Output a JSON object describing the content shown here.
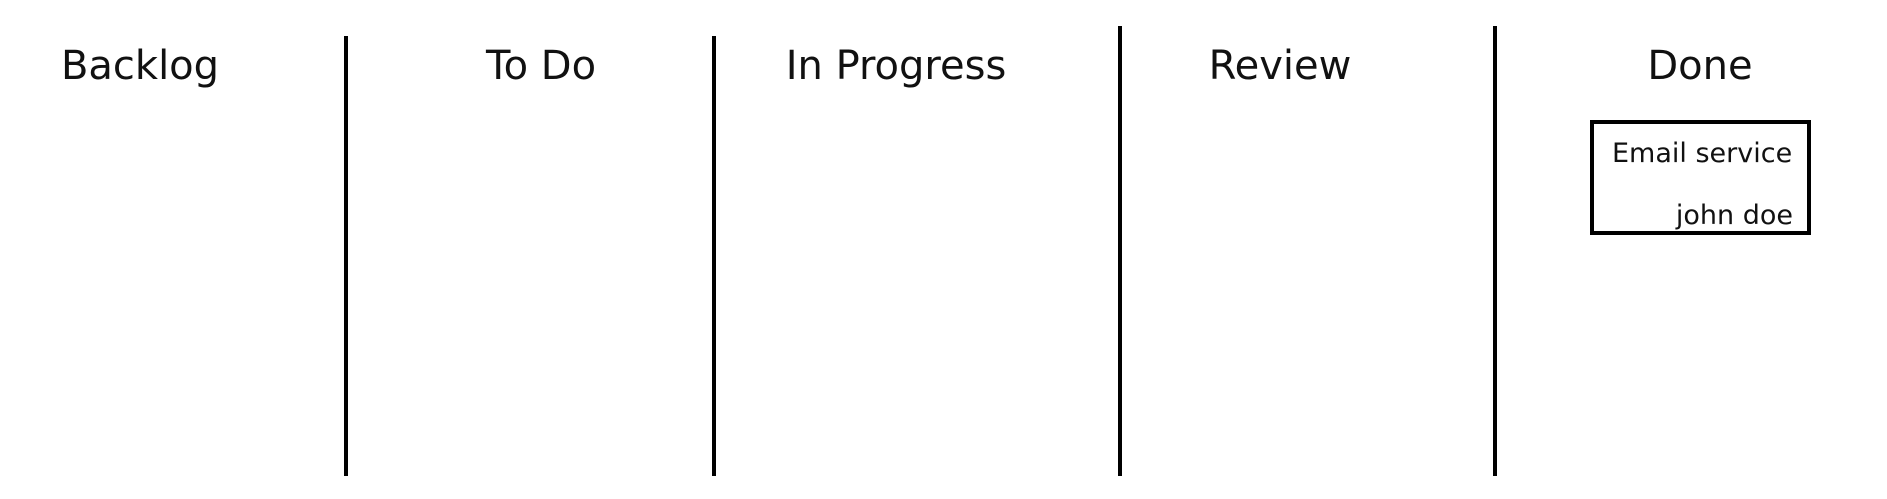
{
  "board": {
    "columns": [
      {
        "title": "Backlog",
        "cards": []
      },
      {
        "title": "To Do",
        "cards": []
      },
      {
        "title": "In Progress",
        "cards": []
      },
      {
        "title": "Review",
        "cards": []
      },
      {
        "title": "Done",
        "cards": [
          {
            "title": "Email service",
            "assignee": "john doe"
          }
        ]
      }
    ]
  }
}
